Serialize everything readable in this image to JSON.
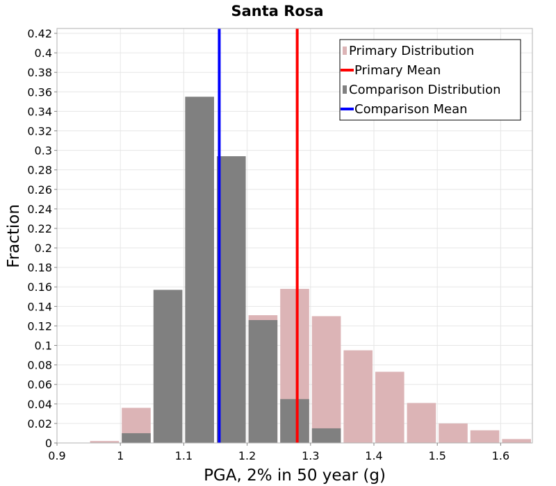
{
  "chart_data": {
    "type": "bar",
    "title": "Santa Rosa",
    "xlabel": "PGA, 2% in 50 year (g)",
    "ylabel": "Fraction",
    "xlim": [
      0.9,
      1.65
    ],
    "ylim": [
      0,
      0.425
    ],
    "bin_width": 0.05,
    "x_ticks": [
      "0.9",
      "1",
      "1.1",
      "1.2",
      "1.3",
      "1.4",
      "1.5",
      "1.6"
    ],
    "y_ticks": [
      "0",
      "0.02",
      "0.04",
      "0.06",
      "0.08",
      "0.1",
      "0.12",
      "0.14",
      "0.16",
      "0.18",
      "0.2",
      "0.22",
      "0.24",
      "0.26",
      "0.28",
      "0.3",
      "0.32",
      "0.34",
      "0.36",
      "0.38",
      "0.4",
      "0.42"
    ],
    "grid": true,
    "series": [
      {
        "name": "Primary Distribution",
        "kind": "histogram",
        "color": "#dcb4b6",
        "bins": [
          0.975,
          1.025,
          1.075,
          1.125,
          1.175,
          1.225,
          1.275,
          1.325,
          1.375,
          1.425,
          1.475,
          1.525,
          1.575,
          1.625
        ],
        "values": [
          0.002,
          0.036,
          0.0,
          0.0,
          0.0,
          0.131,
          0.158,
          0.13,
          0.095,
          0.073,
          0.041,
          0.02,
          0.013,
          0.004
        ]
      },
      {
        "name": "Comparison Distribution",
        "kind": "histogram",
        "color": "#808080",
        "bins": [
          1.025,
          1.075,
          1.125,
          1.175,
          1.225,
          1.275,
          1.325
        ],
        "values": [
          0.01,
          0.157,
          0.355,
          0.294,
          0.126,
          0.045,
          0.015
        ]
      },
      {
        "name": "Primary Mean",
        "kind": "vline",
        "color": "#ff0000",
        "x": 1.279
      },
      {
        "name": "Comparison Mean",
        "kind": "vline",
        "color": "#0000ff",
        "x": 1.156
      }
    ],
    "legend": {
      "position": "top-right",
      "entries": [
        {
          "label": "Primary Distribution",
          "symbol": "square",
          "color": "#dcb4b6"
        },
        {
          "label": "Primary Mean",
          "symbol": "line",
          "color": "#ff0000"
        },
        {
          "label": "Comparison Distribution",
          "symbol": "square",
          "color": "#808080"
        },
        {
          "label": "Comparison Mean",
          "symbol": "line",
          "color": "#0000ff"
        }
      ]
    }
  }
}
